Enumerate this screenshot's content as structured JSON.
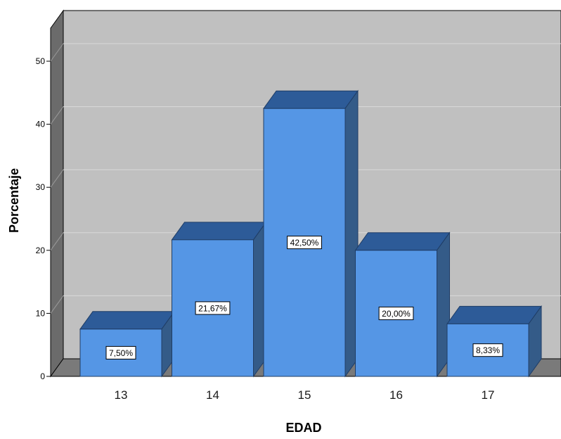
{
  "chart_data": {
    "type": "bar",
    "title": "",
    "xlabel": "EDAD",
    "ylabel": "Porcentaje",
    "categories": [
      "13",
      "14",
      "15",
      "16",
      "17"
    ],
    "values": [
      7.5,
      21.67,
      42.5,
      20.0,
      8.33
    ],
    "data_labels": [
      "7,50%",
      "21,67%",
      "42,50%",
      "20,00%",
      "8,33%"
    ],
    "yticks": [
      "0",
      "10",
      "20",
      "30",
      "40",
      "50"
    ],
    "ylim": [
      0,
      55
    ],
    "grid": true,
    "legend": "none",
    "style": "3d",
    "colors": {
      "bar_front": "#5596e5",
      "bar_top": "#2d5b98",
      "bar_side": "#345b88",
      "plot_wall": "#c0c0c0",
      "side_wall": "#6b6b6b",
      "floor": "#7a7a7a",
      "gridline": "#d9d9d9"
    }
  }
}
